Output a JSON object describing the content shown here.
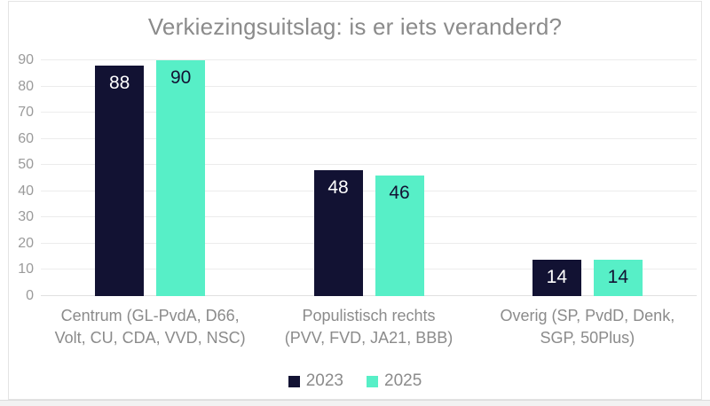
{
  "chart_data": {
    "type": "bar",
    "title": "Verkiezingsuitslag: is er iets veranderd?",
    "categories": [
      "Centrum (GL-PvdA, D66, Volt, CU, CDA, VVD, NSC)",
      "Populistisch rechts (PVV, FVD, JA21, BBB)",
      "Overig (SP, PvdD, Denk, SGP, 50Plus)"
    ],
    "category_lines": [
      [
        "Centrum (GL-PvdA, D66,",
        "Volt, CU, CDA, VVD, NSC)"
      ],
      [
        "Populistisch rechts",
        "(PVV, FVD, JA21, BBB)"
      ],
      [
        "Overig (SP, PvdD, Denk,",
        "SGP, 50Plus)"
      ]
    ],
    "series": [
      {
        "name": "2023",
        "color": "#121233",
        "label_color": "#FFFFFF",
        "values": [
          88,
          48,
          14
        ]
      },
      {
        "name": "2025",
        "color": "#57EFC7",
        "label_color": "#121233",
        "values": [
          90,
          46,
          14
        ]
      }
    ],
    "xlabel": "",
    "ylabel": "",
    "ylim": [
      0,
      90
    ],
    "yticks": [
      0,
      10,
      20,
      30,
      40,
      50,
      60,
      70,
      80,
      90
    ],
    "grid": true,
    "bar_labels": true,
    "legend_position": "bottom"
  },
  "colors": {
    "title_text": "#8B8B8B",
    "axis_text": "#9A9A9A",
    "category_text": "#8B8B8B",
    "legend_text": "#8B8B8B",
    "gridline": "#ECECEC",
    "baseline": "#E0E0E0",
    "card_border": "#E4E4E4",
    "bottom_strip": "#F2F2F2",
    "series_2023": "#121233",
    "series_2025": "#57EFC7",
    "background": "#FFFFFF"
  }
}
